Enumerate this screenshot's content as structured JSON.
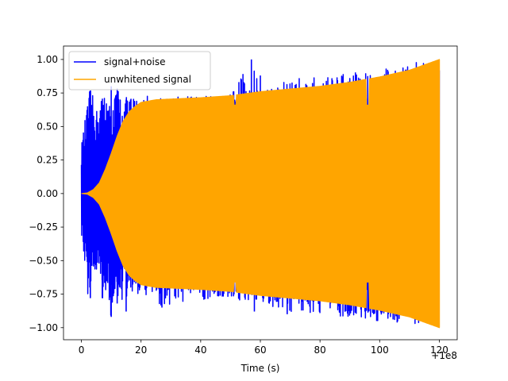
{
  "chart_data": {
    "type": "line",
    "title": "",
    "xlabel": "Time (s)",
    "ylabel": "",
    "x_offset_label": "+1e8",
    "xlim": [
      -6,
      126
    ],
    "ylim": [
      -1.09,
      1.1
    ],
    "x_ticks": [
      0,
      20,
      40,
      60,
      80,
      100,
      120
    ],
    "x_tick_labels": [
      "0",
      "20",
      "40",
      "60",
      "80",
      "100",
      "120"
    ],
    "y_ticks": [
      -1.0,
      -0.75,
      -0.5,
      -0.25,
      0.0,
      0.25,
      0.5,
      0.75,
      1.0
    ],
    "y_tick_labels": [
      "−1.00",
      "−0.75",
      "−0.50",
      "−0.25",
      "0.00",
      "0.25",
      "0.50",
      "0.75",
      "1.00"
    ],
    "grid": false,
    "legend_position": "top-left",
    "series": [
      {
        "name": "signal+noise",
        "color": "#0000ff",
        "x_range": [
          0,
          120
        ],
        "envelope_upper": [
          [
            0,
            0.36
          ],
          [
            1,
            0.52
          ],
          [
            3,
            0.8
          ],
          [
            5,
            0.62
          ],
          [
            8,
            0.8
          ],
          [
            10,
            0.62
          ],
          [
            12,
            0.82
          ],
          [
            14,
            0.68
          ],
          [
            16,
            0.75
          ],
          [
            18,
            0.72
          ],
          [
            22,
            0.74
          ],
          [
            30,
            0.72
          ],
          [
            40,
            0.73
          ],
          [
            50,
            0.74
          ],
          [
            57,
            1.0
          ],
          [
            60,
            0.78
          ],
          [
            68,
            0.84
          ],
          [
            70,
            0.86
          ],
          [
            80,
            0.87
          ],
          [
            90,
            0.9
          ],
          [
            100,
            0.93
          ],
          [
            110,
            0.97
          ],
          [
            120,
            1.0
          ]
        ],
        "envelope_lower": [
          [
            0,
            -0.32
          ],
          [
            1,
            -0.52
          ],
          [
            2,
            -0.78
          ],
          [
            4,
            -0.62
          ],
          [
            6,
            -0.7
          ],
          [
            8,
            -0.85
          ],
          [
            10,
            -0.92
          ],
          [
            12,
            -0.78
          ],
          [
            14,
            -0.82
          ],
          [
            16,
            -0.77
          ],
          [
            20,
            -0.75
          ],
          [
            28,
            -0.85
          ],
          [
            30,
            -0.83
          ],
          [
            40,
            -0.8
          ],
          [
            50,
            -0.79
          ],
          [
            60,
            -0.85
          ],
          [
            70,
            -0.88
          ],
          [
            80,
            -0.9
          ],
          [
            90,
            -0.92
          ],
          [
            100,
            -0.95
          ],
          [
            110,
            -0.97
          ],
          [
            120,
            -1.0
          ]
        ],
        "spikes": [
          [
            3,
            0.75
          ],
          [
            5,
            0.55
          ],
          [
            7,
            0.65
          ],
          [
            10,
            0.8
          ],
          [
            12,
            0.65
          ],
          [
            15,
            0.7
          ],
          [
            57,
            1.0
          ],
          [
            60,
            0.88
          ],
          [
            3,
            -0.78
          ],
          [
            7,
            -0.78
          ],
          [
            10,
            -0.92
          ],
          [
            12,
            -0.82
          ],
          [
            15,
            -0.88
          ],
          [
            27,
            -0.85
          ],
          [
            58,
            -0.88
          ],
          [
            69,
            -0.9
          ],
          [
            99,
            -0.95
          ]
        ]
      },
      {
        "name": "unwhitened signal",
        "color": "#ffa500",
        "x_range": [
          0,
          120
        ],
        "envelope": [
          [
            0,
            0.0
          ],
          [
            2,
            0.005
          ],
          [
            4,
            0.03
          ],
          [
            6,
            0.08
          ],
          [
            8,
            0.18
          ],
          [
            10,
            0.3
          ],
          [
            12,
            0.43
          ],
          [
            14,
            0.54
          ],
          [
            16,
            0.61
          ],
          [
            18,
            0.65
          ],
          [
            20,
            0.68
          ],
          [
            25,
            0.7
          ],
          [
            30,
            0.705
          ],
          [
            40,
            0.715
          ],
          [
            50,
            0.73
          ],
          [
            60,
            0.76
          ],
          [
            70,
            0.78
          ],
          [
            80,
            0.8
          ],
          [
            90,
            0.83
          ],
          [
            100,
            0.87
          ],
          [
            110,
            0.92
          ],
          [
            120,
            1.0
          ]
        ],
        "dips": [
          [
            51.5,
            0.66
          ],
          [
            96,
            0.66
          ]
        ]
      }
    ]
  }
}
